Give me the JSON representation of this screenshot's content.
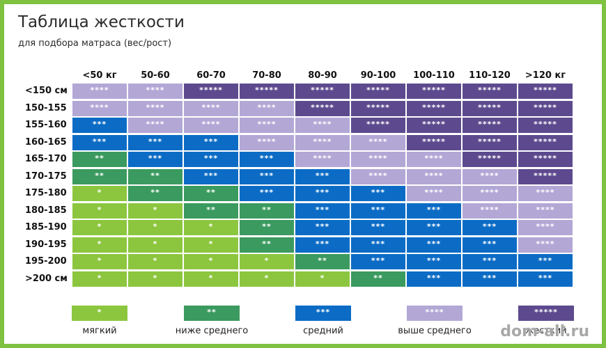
{
  "header": {
    "title": "Таблица жесткости",
    "subtitle": "для подбора матраса (вес/рост)"
  },
  "colors": {
    "1": "#8cc63f",
    "2": "#3b9a5f",
    "3": "#0c6cc5",
    "4": "#b3a7d6",
    "5": "#5d4a8e"
  },
  "chart_data": {
    "type": "heatmap",
    "x_categories": [
      "<50 кг",
      "50-60",
      "60-70",
      "70-80",
      "80-90",
      "90-100",
      "100-110",
      "110-120",
      ">120 кг"
    ],
    "y_categories": [
      "<150 см",
      "150-155",
      "155-160",
      "160-165",
      "165-170",
      "170-175",
      "175-180",
      "180-185",
      "185-190",
      "190-195",
      "195-200",
      ">200 см"
    ],
    "values": [
      [
        4,
        4,
        5,
        5,
        5,
        5,
        5,
        5,
        5
      ],
      [
        4,
        4,
        4,
        4,
        5,
        5,
        5,
        5,
        5
      ],
      [
        3,
        4,
        4,
        4,
        4,
        5,
        5,
        5,
        5
      ],
      [
        3,
        3,
        3,
        4,
        4,
        4,
        5,
        5,
        5
      ],
      [
        2,
        3,
        3,
        3,
        4,
        4,
        4,
        5,
        5
      ],
      [
        2,
        2,
        3,
        3,
        3,
        4,
        4,
        4,
        5
      ],
      [
        1,
        2,
        2,
        3,
        3,
        3,
        4,
        4,
        4
      ],
      [
        1,
        1,
        2,
        2,
        3,
        3,
        3,
        4,
        4
      ],
      [
        1,
        1,
        1,
        2,
        3,
        3,
        3,
        3,
        4
      ],
      [
        1,
        1,
        1,
        2,
        3,
        3,
        3,
        3,
        4
      ],
      [
        1,
        1,
        1,
        1,
        2,
        3,
        3,
        3,
        3
      ],
      [
        1,
        1,
        1,
        1,
        1,
        2,
        3,
        3,
        3
      ]
    ],
    "value_labels": {
      "1": "*",
      "2": "**",
      "3": "***",
      "4": "****",
      "5": "*****"
    },
    "legend": [
      {
        "level": 1,
        "symbol": "*",
        "label": "мягкий"
      },
      {
        "level": 2,
        "symbol": "**",
        "label": "ниже среднего"
      },
      {
        "level": 3,
        "symbol": "***",
        "label": "средний"
      },
      {
        "level": 4,
        "symbol": "****",
        "label": "выше среднего"
      },
      {
        "level": 5,
        "symbol": "*****",
        "label": "жесткий"
      }
    ]
  },
  "watermark": "dom-all.ru"
}
